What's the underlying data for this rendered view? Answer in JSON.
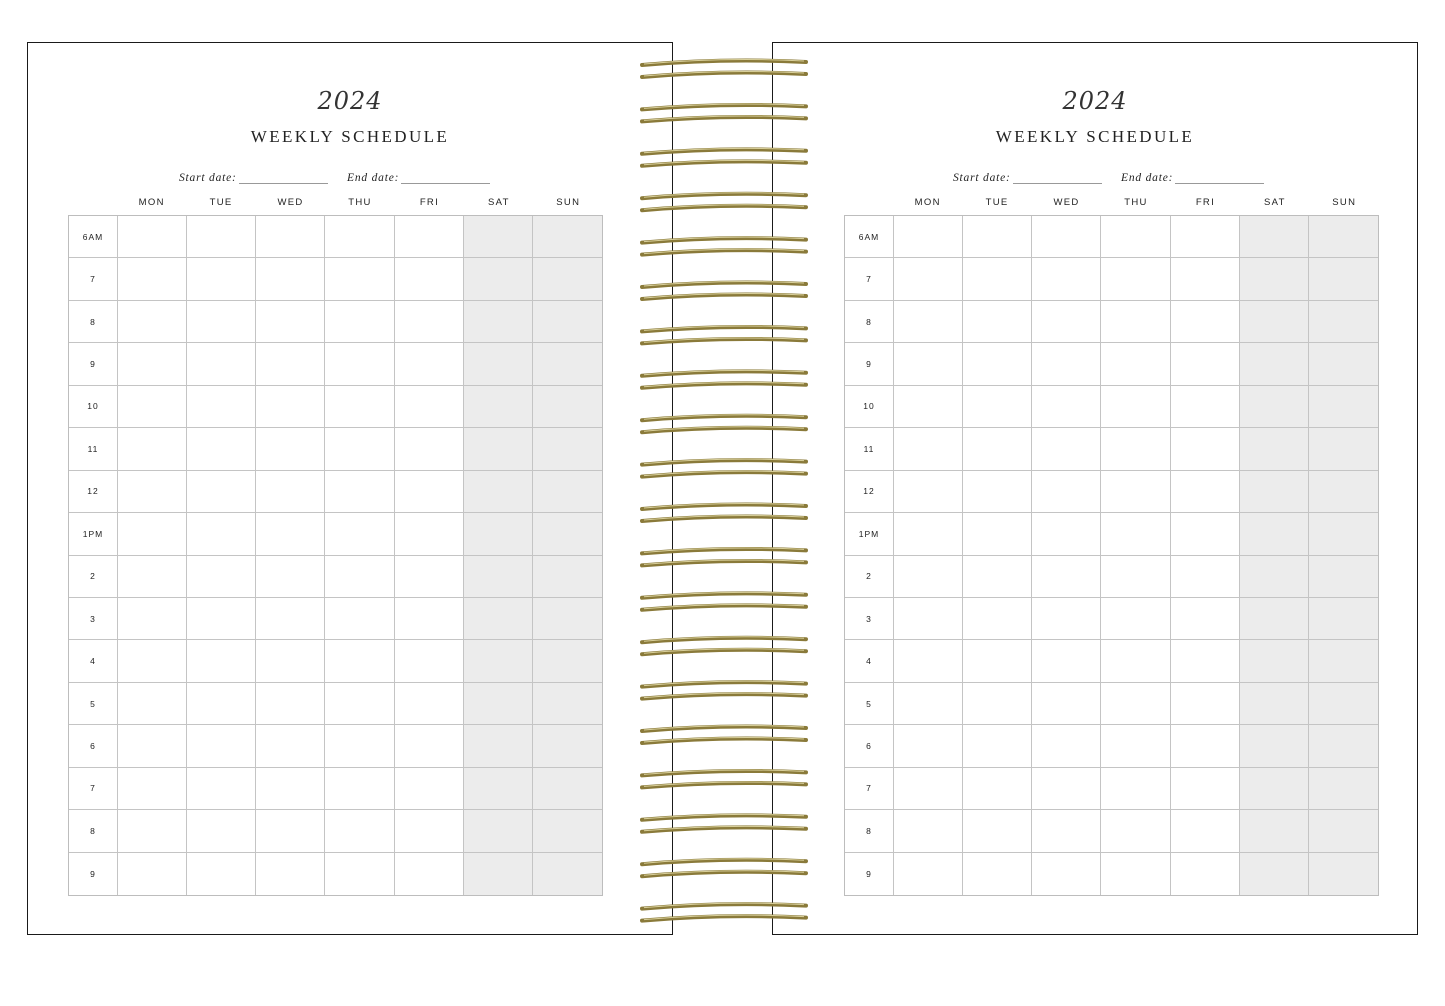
{
  "pages": [
    {
      "year": "2024",
      "title": "WEEKLY SCHEDULE",
      "start_label": "Start date:",
      "end_label": "End date:",
      "days": [
        "MON",
        "TUE",
        "WED",
        "THU",
        "FRI",
        "SAT",
        "SUN"
      ],
      "hours": [
        "6AM",
        "7",
        "8",
        "9",
        "10",
        "11",
        "12",
        "1PM",
        "2",
        "3",
        "4",
        "5",
        "6",
        "7",
        "8",
        "9"
      ]
    },
    {
      "year": "2024",
      "title": "WEEKLY SCHEDULE",
      "start_label": "Start date:",
      "end_label": "End date:",
      "days": [
        "MON",
        "TUE",
        "WED",
        "THU",
        "FRI",
        "SAT",
        "SUN"
      ],
      "hours": [
        "6AM",
        "7",
        "8",
        "9",
        "10",
        "11",
        "12",
        "1PM",
        "2",
        "3",
        "4",
        "5",
        "6",
        "7",
        "8",
        "9"
      ]
    }
  ],
  "colors": {
    "weekend_shade": "#ececec",
    "grid_line": "#c4c4c4",
    "spiral_gold": "#8a7a3a"
  }
}
